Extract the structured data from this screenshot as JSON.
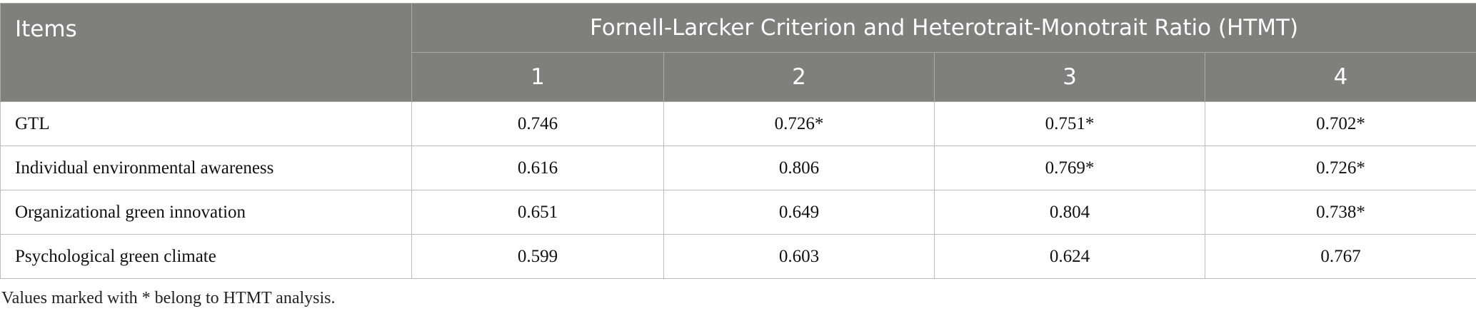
{
  "header": {
    "items": "Items",
    "group": "Fornell-Larcker Criterion and Heterotrait-Monotrait Ratio (HTMT)",
    "columns": [
      "1",
      "2",
      "3",
      "4"
    ]
  },
  "table": {
    "rows": [
      [
        "GTL",
        "0.746",
        "0.726*",
        "0.751*",
        "0.702*"
      ],
      [
        "Individual environmental awareness",
        "0.616",
        "0.806",
        "0.769*",
        "0.726*"
      ],
      [
        "Organizational green innovation",
        "0.651",
        "0.649",
        "0.804",
        "0.738*"
      ],
      [
        "Psychological green climate",
        "0.599",
        "0.603",
        "0.624",
        "0.767"
      ]
    ]
  },
  "footnote": "Values marked with * belong to HTMT analysis."
}
